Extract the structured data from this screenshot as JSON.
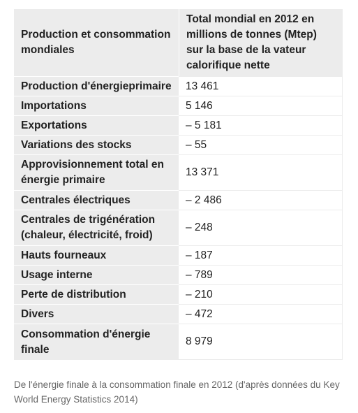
{
  "table": {
    "header": {
      "col1": "Production et consommation mondiales",
      "col2": "Total mondial en 2012 en millions de tonnes (Mtep) sur la base de la vateur calorifique nette"
    },
    "rows": [
      {
        "label": "Production d'énergieprimaire",
        "value": "13 461"
      },
      {
        "label": "Importations",
        "value": "5 146"
      },
      {
        "label": "Exportations",
        "value": "– 5 181"
      },
      {
        "label": "Variations des stocks",
        "value": "– 55"
      },
      {
        "label": "Approvisionnement total en énergie primaire",
        "value": "13 371"
      },
      {
        "label": "Centrales électriques",
        "value": "– 2 486"
      },
      {
        "label": "Centrales de trigénération (chaleur, électricité, froid)",
        "value": "– 248"
      },
      {
        "label": "Hauts fourneaux",
        "value": "– 187"
      },
      {
        "label": "Usage interne",
        "value": "– 789"
      },
      {
        "label": "Perte de distribution",
        "value": "– 210"
      },
      {
        "label": "Divers",
        "value": "– 472"
      },
      {
        "label": "Consommation d'énergie finale",
        "value": "8 979"
      }
    ]
  },
  "caption": "De l'énergie finale à la consommation finale en 2012 (d'après données du Key World Energy Statistics 2014)"
}
